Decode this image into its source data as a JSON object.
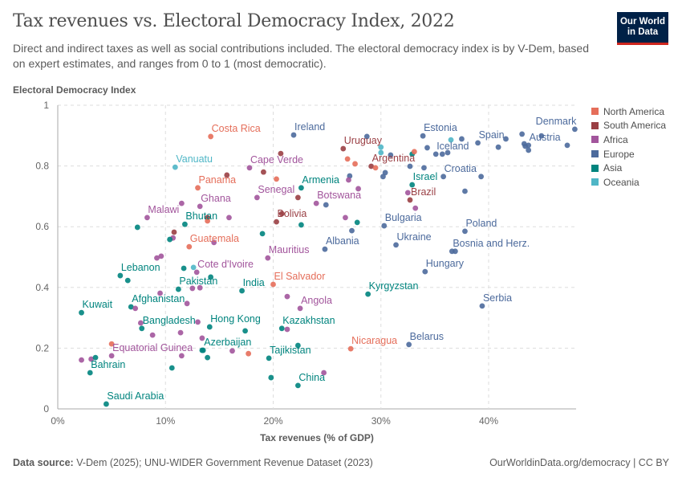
{
  "header": {
    "title": "Tax revenues vs. Electoral Democracy Index, 2022",
    "subtitle": "Direct and indirect taxes as well as social contributions included. The electoral democracy index is by V-Dem, based on expert estimates, and ranges from 0 to 1 (most democratic).",
    "logo_line1": "Our World",
    "logo_line2": "in Data"
  },
  "footer": {
    "source_label": "Data source:",
    "source_text": "V-Dem (2025); UNU-WIDER Government Revenue Dataset (2023)",
    "link": "OurWorldinData.org/democracy | CC BY"
  },
  "legend": [
    {
      "label": "North America",
      "color": "#e56e5a"
    },
    {
      "label": "South America",
      "color": "#9a3f44"
    },
    {
      "label": "Africa",
      "color": "#a2559c"
    },
    {
      "label": "Europe",
      "color": "#4c6a9c"
    },
    {
      "label": "Asia",
      "color": "#00847e"
    },
    {
      "label": "Oceania",
      "color": "#4fb6c6"
    }
  ],
  "chart_data": {
    "type": "scatter",
    "xlabel": "Tax revenues (% of GDP)",
    "ylabel": "Electoral Democracy Index",
    "xlim": [
      0,
      48
    ],
    "ylim": [
      0,
      1
    ],
    "x_ticks": [
      "0%",
      "10%",
      "20%",
      "30%",
      "40%"
    ],
    "x_tick_values": [
      0,
      10,
      20,
      30,
      40
    ],
    "y_ticks": [
      "0",
      "0.2",
      "0.4",
      "0.6",
      "0.8",
      "1"
    ],
    "y_tick_values": [
      0,
      0.2,
      0.4,
      0.6,
      0.8,
      1
    ],
    "grid": true,
    "legend_position": "right",
    "points": [
      {
        "label": "Costa Rica",
        "x": 14.2,
        "y": 0.897,
        "region": "North America"
      },
      {
        "label": "Ireland",
        "x": 21.9,
        "y": 0.902,
        "region": "Europe"
      },
      {
        "label": "Vanuatu",
        "x": 10.9,
        "y": 0.796,
        "region": "Oceania"
      },
      {
        "label": "Cape Verde",
        "x": 17.8,
        "y": 0.794,
        "region": "Africa"
      },
      {
        "label": "Panama",
        "x": 13.0,
        "y": 0.728,
        "region": "North America"
      },
      {
        "label": "Armenia",
        "x": 22.6,
        "y": 0.728,
        "region": "Asia"
      },
      {
        "label": "Senegal",
        "x": 18.5,
        "y": 0.696,
        "region": "Africa"
      },
      {
        "label": "Ghana",
        "x": 13.2,
        "y": 0.667,
        "region": "Africa"
      },
      {
        "label": "Malawi",
        "x": 8.3,
        "y": 0.63,
        "region": "Africa"
      },
      {
        "label": "Bolivia",
        "x": 20.3,
        "y": 0.616,
        "region": "South America"
      },
      {
        "label": "Bhutan",
        "x": 11.8,
        "y": 0.608,
        "region": "Asia"
      },
      {
        "label": "Guatemala",
        "x": 12.2,
        "y": 0.534,
        "region": "North America"
      },
      {
        "label": "Mauritius",
        "x": 19.5,
        "y": 0.497,
        "region": "Africa"
      },
      {
        "label": "Lebanon",
        "x": 5.8,
        "y": 0.439,
        "region": "Asia"
      },
      {
        "label": "Cote d'Ivoire",
        "x": 12.9,
        "y": 0.45,
        "region": "Africa"
      },
      {
        "label": "Pakistan",
        "x": 11.2,
        "y": 0.394,
        "region": "Asia"
      },
      {
        "label": "India",
        "x": 17.1,
        "y": 0.389,
        "region": "Asia"
      },
      {
        "label": "El Salvador",
        "x": 20.0,
        "y": 0.41,
        "region": "North America"
      },
      {
        "label": "Afghanistan",
        "x": 6.8,
        "y": 0.336,
        "region": "Asia"
      },
      {
        "label": "Kuwait",
        "x": 2.2,
        "y": 0.317,
        "region": "Asia"
      },
      {
        "label": "Angola",
        "x": 22.5,
        "y": 0.331,
        "region": "Africa"
      },
      {
        "label": "Bangladesh",
        "x": 7.8,
        "y": 0.265,
        "region": "Asia"
      },
      {
        "label": "Hong Kong",
        "x": 14.1,
        "y": 0.27,
        "region": "Asia"
      },
      {
        "label": "Kazakhstan",
        "x": 20.8,
        "y": 0.265,
        "region": "Asia"
      },
      {
        "label": "Azerbaijan",
        "x": 13.5,
        "y": 0.193,
        "region": "Asia"
      },
      {
        "label": "Equatorial Guinea",
        "x": 5.0,
        "y": 0.175,
        "region": "Africa"
      },
      {
        "label": "Tajikistan",
        "x": 19.6,
        "y": 0.167,
        "region": "Asia"
      },
      {
        "label": "Bahrain",
        "x": 3.0,
        "y": 0.119,
        "region": "Asia"
      },
      {
        "label": "China",
        "x": 22.3,
        "y": 0.077,
        "region": "Asia"
      },
      {
        "label": "Saudi Arabia",
        "x": 4.5,
        "y": 0.016,
        "region": "Asia"
      },
      {
        "label": "Nicaragua",
        "x": 27.2,
        "y": 0.198,
        "region": "North America"
      },
      {
        "label": "Belarus",
        "x": 32.6,
        "y": 0.212,
        "region": "Europe"
      },
      {
        "label": "Serbia",
        "x": 39.4,
        "y": 0.339,
        "region": "Europe"
      },
      {
        "label": "Kyrgyzstan",
        "x": 28.8,
        "y": 0.378,
        "region": "Asia"
      },
      {
        "label": "Hungary",
        "x": 34.1,
        "y": 0.452,
        "region": "Europe"
      },
      {
        "label": "Bosnia and Herz.",
        "x": 36.6,
        "y": 0.519,
        "region": "Europe"
      },
      {
        "label": "Ukraine",
        "x": 31.4,
        "y": 0.54,
        "region": "Europe"
      },
      {
        "label": "Albania",
        "x": 24.8,
        "y": 0.526,
        "region": "Europe"
      },
      {
        "label": "Poland",
        "x": 37.8,
        "y": 0.585,
        "region": "Europe"
      },
      {
        "label": "Bulgaria",
        "x": 30.3,
        "y": 0.603,
        "region": "Europe"
      },
      {
        "label": "Botswana",
        "x": 24.0,
        "y": 0.677,
        "region": "Africa"
      },
      {
        "label": "Brazil",
        "x": 32.7,
        "y": 0.688,
        "region": "South America"
      },
      {
        "label": "Israel",
        "x": 32.9,
        "y": 0.738,
        "region": "Asia"
      },
      {
        "label": "Croatia",
        "x": 35.8,
        "y": 0.765,
        "region": "Europe"
      },
      {
        "label": "Argentina",
        "x": 29.1,
        "y": 0.799,
        "region": "South America"
      },
      {
        "label": "Uruguay",
        "x": 26.5,
        "y": 0.857,
        "region": "South America"
      },
      {
        "label": "Estonia",
        "x": 33.9,
        "y": 0.899,
        "region": "Europe"
      },
      {
        "label": "Iceland",
        "x": 35.1,
        "y": 0.839,
        "region": "Europe"
      },
      {
        "label": "Spain",
        "x": 39.0,
        "y": 0.876,
        "region": "Europe"
      },
      {
        "label": "Austria",
        "x": 43.7,
        "y": 0.868,
        "region": "Europe"
      },
      {
        "label": "Denmark",
        "x": 48.0,
        "y": 0.921,
        "region": "Europe"
      },
      {
        "x": 20.7,
        "y": 0.841,
        "region": "South America"
      },
      {
        "x": 15.7,
        "y": 0.77,
        "region": "South America"
      },
      {
        "x": 19.1,
        "y": 0.78,
        "region": "South America"
      },
      {
        "x": 20.3,
        "y": 0.757,
        "region": "North America"
      },
      {
        "x": 22.3,
        "y": 0.696,
        "region": "South America"
      },
      {
        "x": 20.8,
        "y": 0.643,
        "region": "South America"
      },
      {
        "x": 11.5,
        "y": 0.677,
        "region": "Africa"
      },
      {
        "x": 15.9,
        "y": 0.63,
        "region": "Africa"
      },
      {
        "x": 13.9,
        "y": 0.63,
        "region": "South America"
      },
      {
        "x": 13.9,
        "y": 0.619,
        "region": "North America"
      },
      {
        "x": 7.4,
        "y": 0.598,
        "region": "Asia"
      },
      {
        "x": 22.6,
        "y": 0.606,
        "region": "Asia"
      },
      {
        "x": 10.8,
        "y": 0.582,
        "region": "South America"
      },
      {
        "x": 10.7,
        "y": 0.563,
        "region": "Africa"
      },
      {
        "x": 10.4,
        "y": 0.558,
        "region": "Asia"
      },
      {
        "x": 19.0,
        "y": 0.577,
        "region": "Asia"
      },
      {
        "x": 14.5,
        "y": 0.548,
        "region": "Africa"
      },
      {
        "x": 9.2,
        "y": 0.497,
        "region": "Africa"
      },
      {
        "x": 9.6,
        "y": 0.503,
        "region": "Africa"
      },
      {
        "x": 11.7,
        "y": 0.463,
        "region": "Asia"
      },
      {
        "x": 12.6,
        "y": 0.466,
        "region": "Oceania"
      },
      {
        "x": 6.5,
        "y": 0.423,
        "region": "Asia"
      },
      {
        "x": 14.2,
        "y": 0.434,
        "region": "Asia"
      },
      {
        "x": 12.5,
        "y": 0.397,
        "region": "Africa"
      },
      {
        "x": 13.2,
        "y": 0.399,
        "region": "Africa"
      },
      {
        "x": 9.5,
        "y": 0.381,
        "region": "Africa"
      },
      {
        "x": 21.3,
        "y": 0.37,
        "region": "Africa"
      },
      {
        "x": 12.0,
        "y": 0.347,
        "region": "Africa"
      },
      {
        "x": 7.2,
        "y": 0.331,
        "region": "Africa"
      },
      {
        "x": 7.7,
        "y": 0.283,
        "region": "Africa"
      },
      {
        "x": 13.0,
        "y": 0.286,
        "region": "Africa"
      },
      {
        "x": 17.4,
        "y": 0.257,
        "region": "Asia"
      },
      {
        "x": 21.3,
        "y": 0.262,
        "region": "Africa"
      },
      {
        "x": 8.8,
        "y": 0.243,
        "region": "Africa"
      },
      {
        "x": 11.4,
        "y": 0.251,
        "region": "Africa"
      },
      {
        "x": 13.4,
        "y": 0.233,
        "region": "Africa"
      },
      {
        "x": 5.0,
        "y": 0.214,
        "region": "North America"
      },
      {
        "x": 22.3,
        "y": 0.209,
        "region": "Asia"
      },
      {
        "x": 13.4,
        "y": 0.193,
        "region": "Asia"
      },
      {
        "x": 16.2,
        "y": 0.191,
        "region": "Africa"
      },
      {
        "x": 17.7,
        "y": 0.182,
        "region": "North America"
      },
      {
        "x": 2.2,
        "y": 0.161,
        "region": "Africa"
      },
      {
        "x": 3.1,
        "y": 0.164,
        "region": "Africa"
      },
      {
        "x": 3.5,
        "y": 0.169,
        "region": "Asia"
      },
      {
        "x": 11.5,
        "y": 0.175,
        "region": "Africa"
      },
      {
        "x": 13.9,
        "y": 0.169,
        "region": "Asia"
      },
      {
        "x": 10.6,
        "y": 0.135,
        "region": "Asia"
      },
      {
        "x": 19.8,
        "y": 0.103,
        "region": "Asia"
      },
      {
        "x": 24.7,
        "y": 0.119,
        "region": "Africa"
      },
      {
        "x": 28.7,
        "y": 0.897,
        "region": "Europe"
      },
      {
        "x": 30.0,
        "y": 0.862,
        "region": "Oceania"
      },
      {
        "x": 30.0,
        "y": 0.844,
        "region": "Oceania"
      },
      {
        "x": 30.9,
        "y": 0.836,
        "region": "Europe"
      },
      {
        "x": 26.9,
        "y": 0.823,
        "region": "North America"
      },
      {
        "x": 27.6,
        "y": 0.807,
        "region": "North America"
      },
      {
        "x": 29.5,
        "y": 0.794,
        "region": "North America"
      },
      {
        "x": 32.9,
        "y": 0.839,
        "region": "Asia"
      },
      {
        "x": 33.1,
        "y": 0.847,
        "region": "North America"
      },
      {
        "x": 32.7,
        "y": 0.799,
        "region": "Europe"
      },
      {
        "x": 34.0,
        "y": 0.794,
        "region": "Europe"
      },
      {
        "x": 34.3,
        "y": 0.86,
        "region": "Europe"
      },
      {
        "x": 35.7,
        "y": 0.839,
        "region": "Europe"
      },
      {
        "x": 36.2,
        "y": 0.844,
        "region": "Europe"
      },
      {
        "x": 36.5,
        "y": 0.886,
        "region": "Oceania"
      },
      {
        "x": 37.5,
        "y": 0.889,
        "region": "Europe"
      },
      {
        "x": 40.9,
        "y": 0.862,
        "region": "Europe"
      },
      {
        "x": 41.6,
        "y": 0.889,
        "region": "Europe"
      },
      {
        "x": 43.1,
        "y": 0.905,
        "region": "Europe"
      },
      {
        "x": 44.9,
        "y": 0.899,
        "region": "Europe"
      },
      {
        "x": 43.3,
        "y": 0.873,
        "region": "Europe"
      },
      {
        "x": 43.4,
        "y": 0.865,
        "region": "Europe"
      },
      {
        "x": 43.7,
        "y": 0.852,
        "region": "Europe"
      },
      {
        "x": 47.3,
        "y": 0.868,
        "region": "Europe"
      },
      {
        "x": 30.4,
        "y": 0.778,
        "region": "Europe"
      },
      {
        "x": 30.2,
        "y": 0.765,
        "region": "Europe"
      },
      {
        "x": 27.1,
        "y": 0.767,
        "region": "Europe"
      },
      {
        "x": 27.0,
        "y": 0.754,
        "region": "Africa"
      },
      {
        "x": 27.9,
        "y": 0.725,
        "region": "Africa"
      },
      {
        "x": 24.9,
        "y": 0.672,
        "region": "Europe"
      },
      {
        "x": 32.5,
        "y": 0.712,
        "region": "Africa"
      },
      {
        "x": 33.2,
        "y": 0.661,
        "region": "Africa"
      },
      {
        "x": 39.3,
        "y": 0.765,
        "region": "Europe"
      },
      {
        "x": 37.8,
        "y": 0.717,
        "region": "Europe"
      },
      {
        "x": 26.7,
        "y": 0.63,
        "region": "Africa"
      },
      {
        "x": 27.8,
        "y": 0.614,
        "region": "Asia"
      },
      {
        "x": 27.3,
        "y": 0.587,
        "region": "Europe"
      },
      {
        "x": 36.9,
        "y": 0.519,
        "region": "Europe"
      }
    ]
  }
}
